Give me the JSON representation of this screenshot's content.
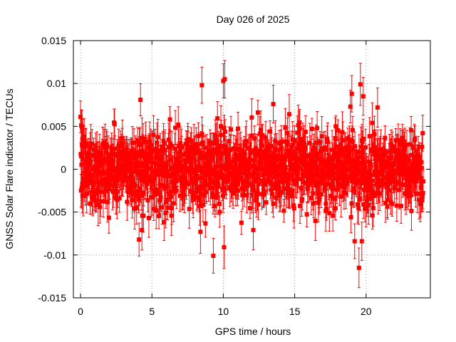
{
  "chart_data": {
    "type": "scatter",
    "title": "Day 026 of 2025",
    "xlabel": "GPS time / hours",
    "ylabel": "GNSS Solar Flare indicator / TECUs",
    "xlim": [
      -0.5,
      24.5
    ],
    "ylim": [
      -0.015,
      0.015
    ],
    "xticks": [
      0,
      5,
      10,
      15,
      20
    ],
    "xtick_labels": [
      "0",
      "5",
      "10",
      "15",
      "20"
    ],
    "yticks": [
      -0.015,
      -0.01,
      -0.005,
      0,
      0.005,
      0.01,
      0.015
    ],
    "ytick_labels": [
      "-0.015",
      "-0.01",
      "-0.005",
      "0",
      "0.005",
      "0.01",
      "0.015"
    ],
    "grid": true,
    "grid_style": "dotted",
    "series_color": "#ff0000",
    "marker": "square",
    "error_bars": true,
    "x_range": [
      0,
      24
    ],
    "outliers": [
      {
        "x": 0.05,
        "y": 0.0051
      },
      {
        "x": 0.1,
        "y": 0.0049
      },
      {
        "x": 4.2,
        "y": 0.0081
      },
      {
        "x": 4.1,
        "y": -0.0082
      },
      {
        "x": 4.3,
        "y": -0.0071
      },
      {
        "x": 8.5,
        "y": 0.0098
      },
      {
        "x": 8.4,
        "y": -0.0073
      },
      {
        "x": 9.3,
        "y": -0.0101
      },
      {
        "x": 10.0,
        "y": 0.0103
      },
      {
        "x": 10.1,
        "y": 0.0105
      },
      {
        "x": 10.05,
        "y": -0.0091
      },
      {
        "x": 12.1,
        "y": -0.0071
      },
      {
        "x": 13.5,
        "y": 0.0076
      },
      {
        "x": 19.0,
        "y": 0.0088
      },
      {
        "x": 19.2,
        "y": -0.0084
      },
      {
        "x": 19.5,
        "y": -0.0115
      },
      {
        "x": 19.7,
        "y": -0.0084
      },
      {
        "x": 19.6,
        "y": 0.0099
      },
      {
        "x": 19.8,
        "y": 0.0085
      },
      {
        "x": 18.9,
        "y": 0.0073
      },
      {
        "x": 20.8,
        "y": 0.0072
      }
    ]
  }
}
